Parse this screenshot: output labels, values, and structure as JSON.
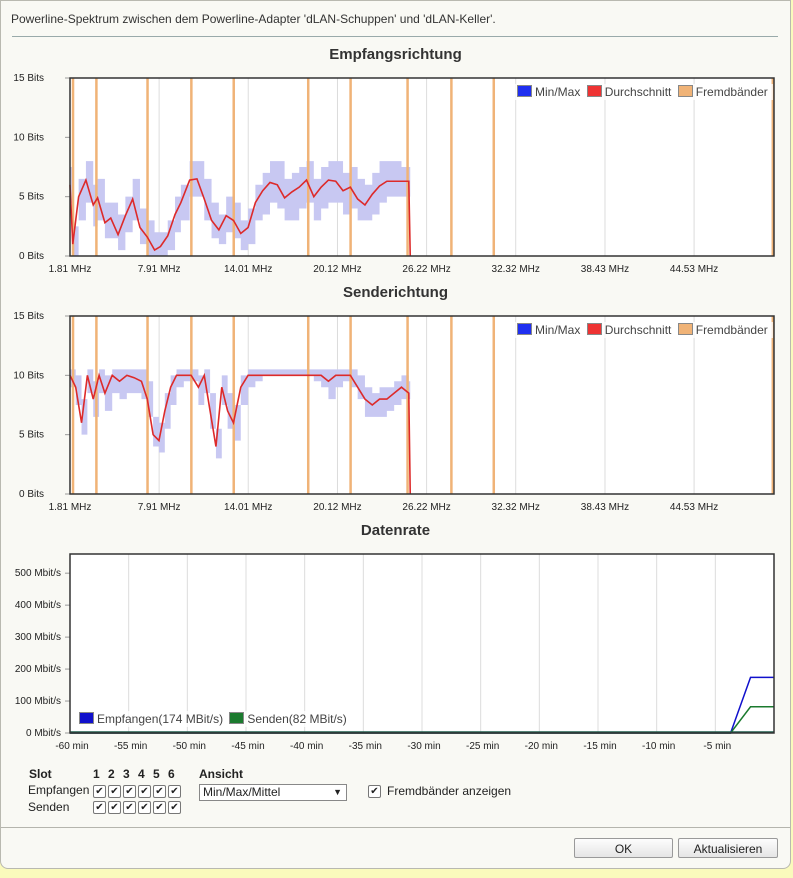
{
  "header": {
    "text": "Powerline-Spektrum zwischen dem Powerline-Adapter 'dLAN-Schuppen' und 'dLAN-Keller'."
  },
  "legend_spectrum": {
    "minmax": "Min/Max",
    "average": "Durchschnitt",
    "foreign": "Fremdbänder"
  },
  "colors": {
    "minmax": "#1f2ff0",
    "average": "#ee3333",
    "foreign": "#f0b377",
    "receive": "#1010cc",
    "send": "#1b7a2e",
    "band_fill": "#c8c8f2",
    "avg_line": "#dd2a2a"
  },
  "chart_data": [
    {
      "type": "area",
      "title": "Empfangsrichtung",
      "x_tick_labels": [
        "1.81 MHz",
        "7.91 MHz",
        "14.01 MHz",
        "20.12 MHz",
        "26.22 MHz",
        "32.32 MHz",
        "38.43 MHz",
        "44.53 MHz"
      ],
      "x_ticks": [
        1.81,
        7.91,
        14.01,
        20.12,
        26.22,
        32.32,
        38.43,
        44.53
      ],
      "y_tick_labels": [
        "0 Bits",
        "5 Bits",
        "10 Bits",
        "15 Bits"
      ],
      "y_ticks": [
        0,
        5,
        10,
        15
      ],
      "xlim": [
        1.81,
        50.0
      ],
      "ylim": [
        0,
        15
      ],
      "foreign_bands_mhz": [
        2.0,
        3.6,
        7.1,
        10.1,
        13.0,
        18.1,
        21.0,
        24.9,
        27.9,
        30.8,
        49.9
      ],
      "average": {
        "x": [
          1.81,
          2.0,
          2.4,
          2.9,
          3.4,
          3.7,
          4.2,
          4.6,
          5.1,
          5.6,
          6.1,
          6.6,
          7.1,
          7.6,
          8.0,
          8.5,
          9.0,
          9.4,
          10.0,
          10.5,
          11.0,
          11.5,
          12.0,
          12.5,
          13.0,
          13.5,
          14.0,
          14.5,
          15.0,
          15.5,
          16.0,
          16.5,
          17.0,
          17.5,
          18.0,
          18.5,
          19.0,
          19.5,
          20.0,
          20.5,
          21.0,
          21.5,
          22.0,
          22.5,
          23.0,
          23.5,
          24.0,
          24.5,
          25.0,
          25.1
        ],
        "values": [
          6.0,
          1.0,
          5.0,
          6.4,
          4.3,
          4.9,
          2.8,
          3.2,
          1.8,
          3.4,
          4.8,
          2.4,
          1.6,
          0.5,
          0.8,
          1.7,
          3.5,
          4.5,
          6.4,
          6.5,
          4.8,
          3.0,
          2.2,
          3.4,
          3.0,
          1.9,
          2.4,
          4.5,
          5.5,
          6.2,
          6.0,
          4.9,
          5.4,
          5.8,
          6.4,
          5.0,
          5.8,
          6.4,
          6.3,
          5.5,
          5.8,
          4.8,
          4.3,
          5.2,
          5.9,
          6.3,
          6.3,
          6.3,
          6.3,
          0.0
        ]
      },
      "band": {
        "x": [
          1.81,
          2.0,
          2.4,
          2.9,
          3.4,
          3.7,
          4.2,
          4.6,
          5.1,
          5.6,
          6.1,
          6.6,
          7.1,
          7.6,
          8.0,
          8.5,
          9.0,
          9.4,
          10.0,
          10.5,
          11.0,
          11.5,
          12.0,
          12.5,
          13.0,
          13.5,
          14.0,
          14.5,
          15.0,
          15.5,
          16.0,
          16.5,
          17.0,
          17.5,
          18.0,
          18.5,
          19.0,
          19.5,
          20.0,
          20.5,
          21.0,
          21.5,
          22.0,
          22.5,
          23.0,
          23.5,
          24.0,
          24.5,
          25.0,
          25.1
        ],
        "min": [
          4.5,
          0.0,
          3.0,
          4.5,
          2.5,
          3.0,
          1.5,
          1.5,
          0.5,
          2.0,
          3.0,
          1.0,
          0.0,
          0.0,
          0.0,
          0.5,
          2.0,
          3.0,
          5.0,
          5.0,
          3.0,
          1.5,
          1.0,
          2.0,
          1.5,
          0.5,
          1.0,
          3.0,
          3.5,
          4.5,
          4.0,
          3.0,
          3.0,
          4.0,
          4.5,
          3.0,
          4.0,
          4.5,
          4.5,
          3.5,
          4.0,
          3.0,
          3.0,
          3.5,
          4.5,
          5.0,
          5.0,
          5.0,
          5.0,
          0.0
        ],
        "max": [
          7.5,
          2.5,
          6.5,
          8.0,
          6.0,
          6.5,
          4.5,
          4.5,
          3.5,
          5.0,
          6.5,
          4.0,
          3.0,
          2.0,
          2.0,
          3.0,
          5.0,
          6.0,
          8.0,
          8.0,
          6.5,
          4.5,
          3.5,
          5.0,
          4.5,
          3.0,
          4.0,
          6.0,
          7.0,
          8.0,
          8.0,
          6.5,
          7.0,
          7.5,
          8.0,
          6.5,
          7.5,
          8.0,
          8.0,
          7.0,
          7.5,
          6.5,
          6.0,
          7.0,
          8.0,
          8.0,
          8.0,
          7.5,
          7.5,
          0.0
        ]
      }
    },
    {
      "type": "area",
      "title": "Senderichtung",
      "x_tick_labels": [
        "1.81 MHz",
        "7.91 MHz",
        "14.01 MHz",
        "20.12 MHz",
        "26.22 MHz",
        "32.32 MHz",
        "38.43 MHz",
        "44.53 MHz"
      ],
      "x_ticks": [
        1.81,
        7.91,
        14.01,
        20.12,
        26.22,
        32.32,
        38.43,
        44.53
      ],
      "y_tick_labels": [
        "0 Bits",
        "5 Bits",
        "10 Bits",
        "15 Bits"
      ],
      "y_ticks": [
        0,
        5,
        10,
        15
      ],
      "xlim": [
        1.81,
        50.0
      ],
      "ylim": [
        0,
        15
      ],
      "foreign_bands_mhz": [
        2.0,
        3.6,
        7.1,
        10.1,
        13.0,
        18.1,
        21.0,
        24.9,
        27.9,
        30.8,
        49.9
      ],
      "average": {
        "x": [
          1.81,
          2.2,
          2.6,
          3.0,
          3.4,
          3.8,
          4.2,
          4.7,
          5.2,
          5.7,
          6.2,
          6.7,
          7.1,
          7.5,
          7.9,
          8.3,
          8.7,
          9.1,
          9.6,
          10.1,
          10.6,
          11.0,
          11.4,
          11.8,
          12.2,
          12.6,
          13.0,
          13.5,
          14.0,
          14.5,
          15.0,
          15.5,
          16.0,
          16.5,
          17.0,
          17.5,
          18.0,
          18.5,
          19.0,
          19.5,
          20.0,
          20.5,
          21.0,
          21.5,
          22.0,
          22.5,
          23.0,
          23.5,
          24.0,
          24.5,
          25.0,
          25.1
        ],
        "values": [
          10.0,
          9.0,
          6.0,
          10.0,
          8.0,
          10.0,
          8.5,
          10.0,
          9.5,
          10.0,
          9.8,
          9.5,
          8.0,
          5.0,
          4.5,
          7.0,
          9.0,
          10.0,
          10.0,
          10.0,
          9.0,
          10.0,
          7.0,
          4.0,
          9.0,
          7.0,
          6.0,
          9.0,
          10.0,
          10.0,
          10.0,
          10.0,
          10.0,
          10.0,
          10.0,
          10.0,
          10.0,
          10.0,
          10.0,
          9.5,
          10.0,
          10.0,
          10.0,
          9.0,
          8.0,
          7.5,
          8.0,
          8.0,
          8.5,
          9.0,
          8.5,
          0.0
        ]
      },
      "band": {
        "x": [
          1.81,
          2.2,
          2.6,
          3.0,
          3.4,
          3.8,
          4.2,
          4.7,
          5.2,
          5.7,
          6.2,
          6.7,
          7.1,
          7.5,
          7.9,
          8.3,
          8.7,
          9.1,
          9.6,
          10.1,
          10.6,
          11.0,
          11.4,
          11.8,
          12.2,
          12.6,
          13.0,
          13.5,
          14.0,
          14.5,
          15.0,
          15.5,
          16.0,
          16.5,
          17.0,
          17.5,
          18.0,
          18.5,
          19.0,
          19.5,
          20.0,
          20.5,
          21.0,
          21.5,
          22.0,
          22.5,
          23.0,
          23.5,
          24.0,
          24.5,
          25.0,
          25.1
        ],
        "min": [
          9.0,
          7.5,
          5.0,
          8.5,
          6.5,
          8.5,
          7.0,
          8.5,
          8.0,
          8.5,
          8.5,
          8.0,
          6.5,
          4.0,
          3.5,
          5.5,
          7.5,
          9.0,
          9.5,
          9.5,
          7.5,
          8.5,
          5.5,
          3.0,
          7.5,
          5.5,
          4.5,
          7.5,
          9.0,
          9.5,
          10.0,
          10.0,
          10.0,
          10.0,
          10.0,
          10.0,
          10.0,
          9.5,
          9.0,
          8.0,
          9.0,
          9.5,
          9.0,
          8.0,
          6.5,
          6.5,
          6.5,
          7.0,
          7.5,
          8.0,
          8.0,
          0.0
        ],
        "max": [
          10.5,
          10.0,
          8.0,
          10.5,
          9.5,
          10.5,
          10.0,
          10.5,
          10.5,
          10.5,
          10.5,
          10.5,
          9.5,
          6.5,
          6.0,
          8.5,
          10.0,
          10.5,
          10.5,
          10.5,
          10.0,
          10.5,
          8.5,
          5.5,
          10.0,
          8.5,
          7.5,
          10.0,
          10.5,
          10.5,
          10.5,
          10.5,
          10.5,
          10.5,
          10.5,
          10.5,
          10.5,
          10.5,
          10.5,
          10.5,
          10.5,
          10.5,
          10.5,
          10.0,
          9.0,
          8.5,
          9.0,
          9.0,
          9.5,
          10.0,
          9.5,
          0.0
        ]
      }
    },
    {
      "type": "line",
      "title": "Datenrate",
      "x_tick_labels": [
        "-60 min",
        "-55 min",
        "-50 min",
        "-45 min",
        "-40 min",
        "-35 min",
        "-30 min",
        "-25 min",
        "-20 min",
        "-15 min",
        "-10 min",
        "-5 min"
      ],
      "x_ticks": [
        -60,
        -55,
        -50,
        -45,
        -40,
        -35,
        -30,
        -25,
        -20,
        -15,
        -10,
        -5
      ],
      "y_tick_labels": [
        "0 Mbit/s",
        "100 Mbit/s",
        "200 Mbit/s",
        "300 Mbit/s",
        "400 Mbit/s",
        "500 Mbit/s"
      ],
      "y_ticks": [
        0,
        100,
        200,
        300,
        400,
        500
      ],
      "xlim": [
        -60,
        0
      ],
      "ylim": [
        0,
        560
      ],
      "series": [
        {
          "name": "Empfangen(174 MBit/s)",
          "key": "receive",
          "x": [
            -60,
            -3.7,
            -2.0,
            0
          ],
          "values": [
            0,
            0,
            174,
            174
          ]
        },
        {
          "name": "Senden(82 MBit/s)",
          "key": "send",
          "x": [
            -60,
            -3.7,
            -2.0,
            0
          ],
          "values": [
            0,
            0,
            82,
            82
          ]
        }
      ]
    }
  ],
  "controls": {
    "slot_label": "Slot",
    "slots": [
      "1",
      "2",
      "3",
      "4",
      "5",
      "6"
    ],
    "receive_label": "Empfangen",
    "send_label": "Senden",
    "view_label": "Ansicht",
    "view_selected": "Min/Max/Mittel",
    "foreign_label": "Fremdbänder anzeigen",
    "check_mark": "✔"
  },
  "buttons": {
    "ok": "OK",
    "refresh": "Aktualisieren"
  }
}
